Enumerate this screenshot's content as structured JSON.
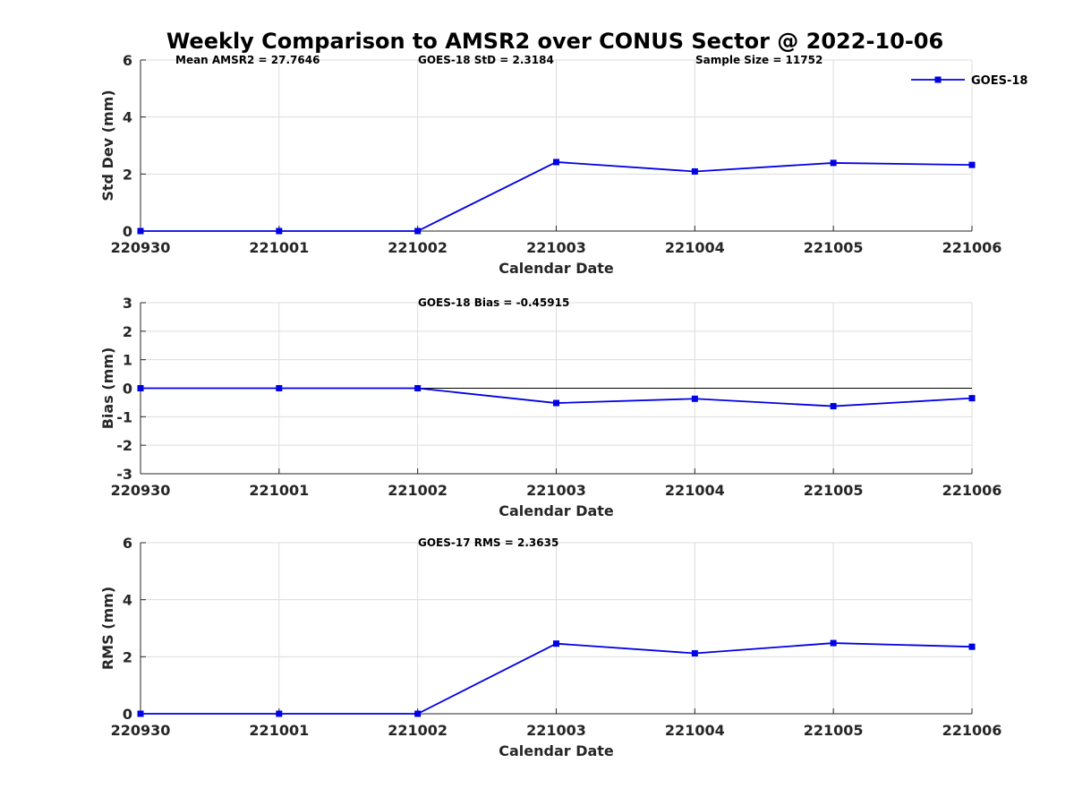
{
  "title": "Weekly Comparison to AMSR2 over CONUS Sector @ 2022-10-06",
  "colors": {
    "series": "#0000e6",
    "grid": "#dcdcdc",
    "axis": "#262626"
  },
  "chart_data": [
    {
      "type": "line",
      "x": [
        "220930",
        "221001",
        "221002",
        "221003",
        "221004",
        "221005",
        "221006"
      ],
      "series": [
        {
          "name": "GOES-18",
          "values": [
            0,
            0,
            0,
            2.42,
            2.09,
            2.39,
            2.32
          ]
        }
      ],
      "xlabel": "Calendar Date",
      "ylabel": "Std Dev (mm)",
      "ylim": [
        0,
        6
      ],
      "yticks": [
        "0",
        "2",
        "4",
        "6"
      ],
      "grid": true,
      "legend": {
        "entries": [
          "GOES-18"
        ],
        "position": "top-right"
      },
      "annotations": [
        "Mean AMSR2 = 27.7646",
        "GOES-18 StD = 2.3184",
        "Sample Size = 11752"
      ]
    },
    {
      "type": "line",
      "x": [
        "220930",
        "221001",
        "221002",
        "221003",
        "221004",
        "221005",
        "221006"
      ],
      "series": [
        {
          "name": "GOES-18",
          "values": [
            0,
            0,
            0,
            -0.52,
            -0.37,
            -0.63,
            -0.35
          ]
        }
      ],
      "xlabel": "Calendar Date",
      "ylabel": "Bias (mm)",
      "ylim": [
        -3,
        3
      ],
      "yticks": [
        "-3",
        "-2",
        "-1",
        "0",
        "1",
        "2",
        "3"
      ],
      "grid": true,
      "zero_line": true,
      "annotations": [
        "GOES-18 Bias  = -0.45915"
      ]
    },
    {
      "type": "line",
      "x": [
        "220930",
        "221001",
        "221002",
        "221003",
        "221004",
        "221005",
        "221006"
      ],
      "series": [
        {
          "name": "GOES-18",
          "values": [
            0,
            0,
            0,
            2.46,
            2.12,
            2.48,
            2.35
          ]
        }
      ],
      "xlabel": "Calendar Date",
      "ylabel": "RMS (mm)",
      "ylim": [
        0,
        6
      ],
      "yticks": [
        "0",
        "2",
        "4",
        "6"
      ],
      "grid": true,
      "annotations": [
        "GOES-17 RMS = 2.3635"
      ]
    }
  ]
}
